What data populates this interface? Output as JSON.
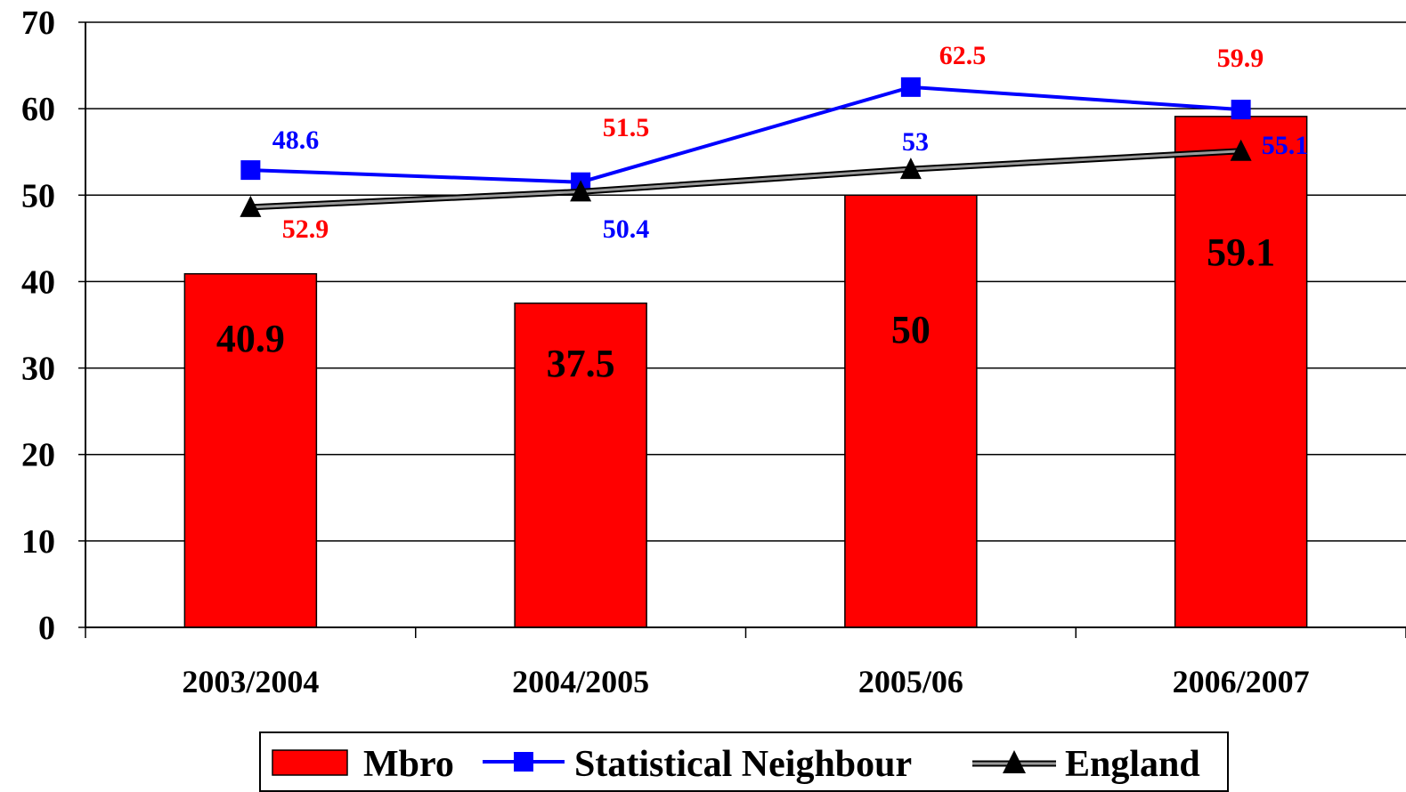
{
  "chart_data": {
    "type": "bar",
    "title": "",
    "xlabel": "",
    "ylabel": "",
    "categories": [
      "2003/2004",
      "2004/2005",
      "2005/06",
      "2006/2007"
    ],
    "ylim": [
      0,
      70
    ],
    "yticks": [
      0,
      10,
      20,
      30,
      40,
      50,
      60,
      70
    ],
    "grid": true,
    "legend_position": "bottom",
    "series": [
      {
        "name": "Mbro",
        "kind": "bar",
        "color": "#ff0000",
        "values": [
          40.9,
          37.5,
          50,
          59.1
        ],
        "labels": [
          "40.9",
          "37.5",
          "50",
          "59.1"
        ]
      },
      {
        "name": "Statistical Neighbour",
        "kind": "line",
        "marker": "square",
        "color": "#0000ff",
        "values": [
          52.9,
          51.5,
          62.5,
          59.9
        ],
        "labels": [
          "52.9",
          "51.5",
          "62.5",
          "59.9"
        ],
        "label_color": "#ff0000"
      },
      {
        "name": "England",
        "kind": "line",
        "marker": "triangle",
        "color": "#000000",
        "values": [
          48.6,
          50.4,
          53,
          55.1
        ],
        "labels": [
          "48.6",
          "50.4",
          "53",
          "55.1"
        ],
        "label_color": "#0000ff"
      }
    ]
  }
}
